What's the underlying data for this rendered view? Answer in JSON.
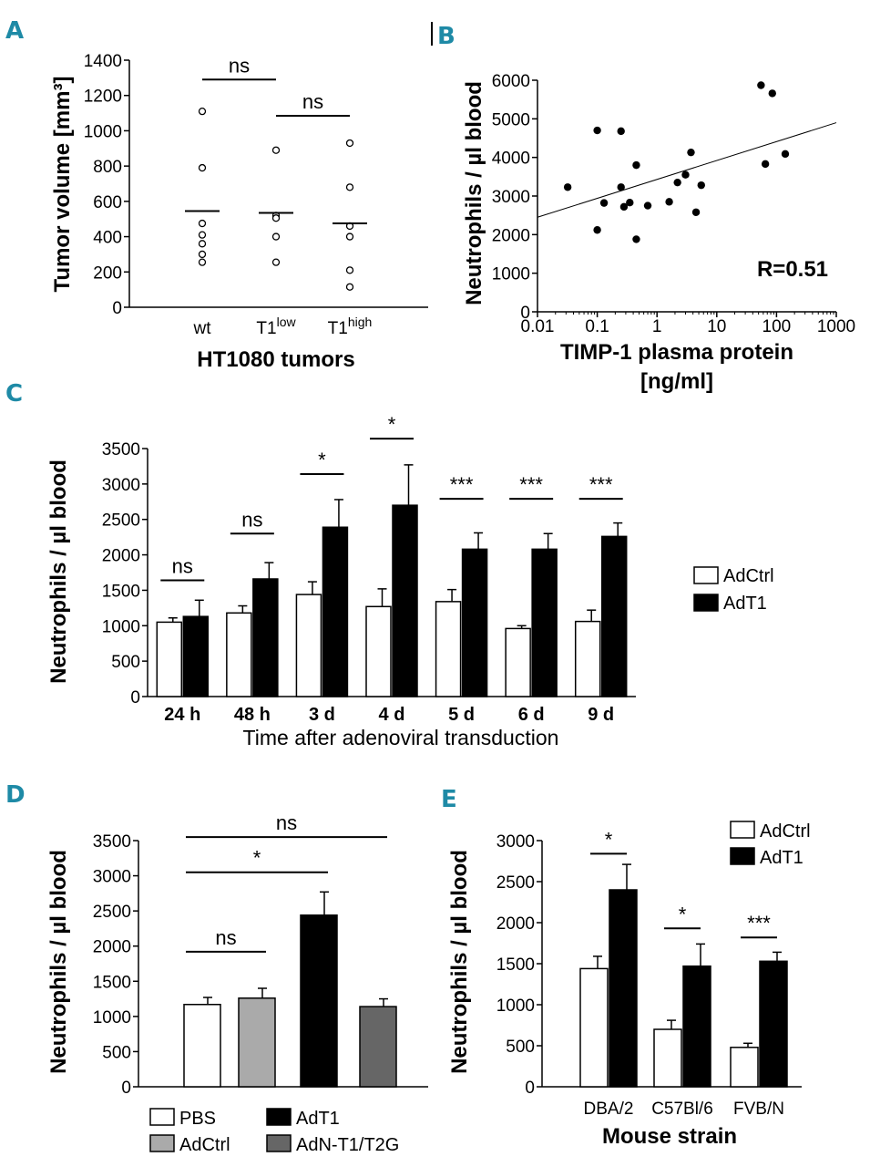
{
  "colors": {
    "panel_letter": "#1e8aa6",
    "adctrl": "#ffffff",
    "adt1": "#000000",
    "pbs": "#ffffff",
    "adctrl_gray": "#aaaaaa",
    "adn": "#666666"
  },
  "chart_data": [
    {
      "panel": "A",
      "type": "scatter",
      "ylabel": "Tumor volume [mm³]",
      "xlabel": "HT1080 tumors",
      "categories": [
        "wt",
        "T1low",
        "T1high"
      ],
      "category_labels": [
        {
          "base": "wt",
          "sup": ""
        },
        {
          "base": "T1",
          "sup": "low"
        },
        {
          "base": "T1",
          "sup": "high"
        }
      ],
      "ylim": [
        0,
        1400
      ],
      "yticks": [
        "0",
        "200",
        "400",
        "600",
        "800",
        "1000",
        "1200",
        "1400"
      ],
      "points": [
        [
          1110,
          790,
          475,
          410,
          360,
          300,
          255
        ],
        [
          890,
          520,
          505,
          400,
          255
        ],
        [
          930,
          680,
          460,
          400,
          210,
          115
        ]
      ],
      "means": [
        545,
        535,
        475
      ],
      "significance": [
        {
          "from": 0,
          "to": 1,
          "label": "ns",
          "y": 1290
        },
        {
          "from": 1,
          "to": 2,
          "label": "ns",
          "y": 1085
        }
      ]
    },
    {
      "panel": "B",
      "type": "scatter",
      "xscale": "log",
      "ylabel": "Neutrophils / µl blood",
      "xlabel_lines": [
        "TIMP-1 plasma protein",
        "[ng/ml]"
      ],
      "xlim": [
        0.01,
        1000
      ],
      "ylim": [
        0,
        6000
      ],
      "xticks": [
        "0.01",
        "0.1",
        "1",
        "10",
        "100",
        "1000"
      ],
      "yticks": [
        "0",
        "1000",
        "2000",
        "3000",
        "4000",
        "5000",
        "6000"
      ],
      "annotation": "R=0.51",
      "points": [
        [
          0.032,
          3230
        ],
        [
          0.1,
          4700
        ],
        [
          0.1,
          2120
        ],
        [
          0.13,
          2820
        ],
        [
          0.25,
          4680
        ],
        [
          0.25,
          3230
        ],
        [
          0.28,
          2720
        ],
        [
          0.35,
          2830
        ],
        [
          0.45,
          3800
        ],
        [
          0.45,
          1880
        ],
        [
          0.7,
          2750
        ],
        [
          1.6,
          2850
        ],
        [
          2.2,
          3350
        ],
        [
          3.0,
          3550
        ],
        [
          3.7,
          4130
        ],
        [
          4.5,
          2580
        ],
        [
          5.5,
          3280
        ],
        [
          55,
          5870
        ],
        [
          65,
          3830
        ],
        [
          85,
          5660
        ],
        [
          140,
          4090
        ]
      ],
      "fit_line": [
        [
          0.01,
          2450
        ],
        [
          1000,
          4900
        ]
      ]
    },
    {
      "panel": "C",
      "type": "bar",
      "ylabel": "Neutrophils / µl blood",
      "xlabel": "Time after adenoviral transduction",
      "categories": [
        "24 h",
        "48 h",
        "3 d",
        "4 d",
        "5 d",
        "6 d",
        "9 d"
      ],
      "ylim": [
        0,
        3500
      ],
      "yticks": [
        "0",
        "500",
        "1000",
        "1500",
        "2000",
        "2500",
        "3000",
        "3500"
      ],
      "series": [
        {
          "name": "AdCtrl",
          "color": "#ffffff",
          "values": [
            1050,
            1180,
            1440,
            1270,
            1340,
            960,
            1060
          ],
          "errors": [
            60,
            100,
            180,
            250,
            170,
            40,
            160
          ]
        },
        {
          "name": "AdT1",
          "color": "#000000",
          "values": [
            1130,
            1660,
            2390,
            2700,
            2080,
            2080,
            2260
          ],
          "errors": [
            230,
            230,
            390,
            570,
            230,
            220,
            190
          ]
        }
      ],
      "significance": [
        "ns",
        "ns",
        "*",
        "*",
        "***",
        "***",
        "***"
      ],
      "significance_y": [
        1640,
        2300,
        3140,
        3640,
        2790,
        2790,
        2790
      ]
    },
    {
      "panel": "D",
      "type": "bar",
      "ylabel": "Neutrophils / µl blood",
      "ylim": [
        0,
        3500
      ],
      "yticks": [
        "0",
        "500",
        "1000",
        "1500",
        "2000",
        "2500",
        "3000",
        "3500"
      ],
      "categories": [
        "PBS",
        "AdCtrl",
        "AdT1",
        "AdN-T1/T2G"
      ],
      "legend_order": [
        "PBS",
        "AdT1",
        "AdCtrl",
        "AdN-T1/T2G"
      ],
      "colors": [
        "#ffffff",
        "#aaaaaa",
        "#000000",
        "#666666"
      ],
      "values": [
        1170,
        1260,
        2440,
        1140
      ],
      "errors": [
        100,
        140,
        330,
        110
      ],
      "significance": [
        {
          "from": 0,
          "to": 3,
          "label": "ns",
          "y": 3550
        },
        {
          "from": 0,
          "to": 2,
          "label": "*",
          "y": 3050
        },
        {
          "from": 0,
          "to": 1,
          "label": "ns",
          "y": 1920
        }
      ]
    },
    {
      "panel": "E",
      "type": "bar",
      "ylabel": "Neutrophils  / µl blood",
      "xlabel": "Mouse strain",
      "categories": [
        "DBA/2",
        "C57Bl/6",
        "FVB/N"
      ],
      "ylim": [
        0,
        3000
      ],
      "yticks": [
        "0",
        "500",
        "1000",
        "1500",
        "2000",
        "2500",
        "3000"
      ],
      "series": [
        {
          "name": "AdCtrl",
          "color": "#ffffff",
          "values": [
            1440,
            700,
            480
          ],
          "errors": [
            150,
            110,
            50
          ]
        },
        {
          "name": "AdT1",
          "color": "#000000",
          "values": [
            2400,
            1470,
            1530
          ],
          "errors": [
            310,
            270,
            110
          ]
        }
      ],
      "significance": [
        "*",
        "*",
        "***"
      ],
      "significance_y": [
        2840,
        1930,
        1820
      ]
    }
  ],
  "panel_letters": [
    "A",
    "B",
    "C",
    "D",
    "E"
  ]
}
